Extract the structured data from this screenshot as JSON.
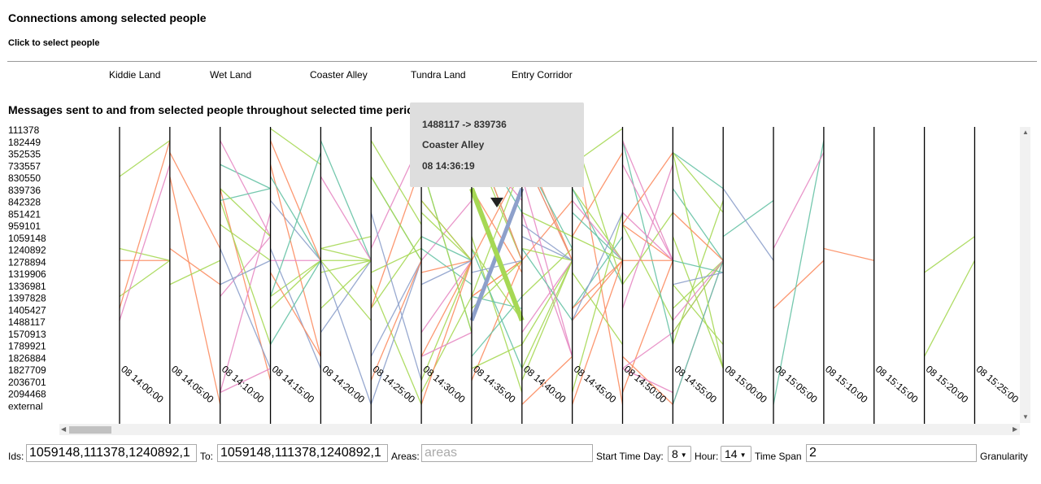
{
  "header": {
    "title": "Connections among selected people",
    "subtitle": "Click to select people"
  },
  "legend": [
    {
      "label": "Kiddie Land",
      "color": "#66c2a5"
    },
    {
      "label": "Wet Land",
      "color": "#fc8d62"
    },
    {
      "label": "Coaster Alley",
      "color": "#8da0cb"
    },
    {
      "label": "Tundra Land",
      "color": "#e78ac3"
    },
    {
      "label": "Entry Corridor",
      "color": "#a6d854"
    }
  ],
  "section_title": "Messages sent to and from selected people throughout selected time period",
  "people": [
    "111378",
    "182449",
    "352535",
    "733557",
    "830550",
    "839736",
    "842328",
    "851421",
    "959101",
    "1059148",
    "1240892",
    "1278894",
    "1319906",
    "1336981",
    "1397828",
    "1405427",
    "1488117",
    "1570913",
    "1789921",
    "1826884",
    "1827709",
    "2036701",
    "2094468",
    "external"
  ],
  "times": [
    "08 14:00:00",
    "08 14:05:00",
    "08 14:10:00",
    "08 14:15:00",
    "08 14:20:00",
    "08 14:25:00",
    "08 14:30:00",
    "08 14:35:00",
    "08 14:40:00",
    "08 14:45:00",
    "08 14:50:00",
    "08 14:55:00",
    "08 15:00:00",
    "08 15:05:00",
    "08 15:10:00",
    "08 15:15:00",
    "08 15:20:00",
    "08 15:25:00"
  ],
  "tooltip": {
    "pair": "1488117 -> 839736",
    "area": "Coaster Alley",
    "time": "08 14:36:19"
  },
  "controls": {
    "ids_label": "Ids:",
    "ids_value": "1059148,111378,1240892,1",
    "to_label": "To:",
    "to_value": "1059148,111378,1240892,1",
    "areas_label": "Areas:",
    "areas_placeholder": "areas",
    "start_label": "Start Time Day:",
    "day_value": "8",
    "hour_label": "Hour:",
    "hour_value": "14",
    "span_label": "Time Span",
    "span_value": "2",
    "granularity_label": "Granularity"
  }
}
